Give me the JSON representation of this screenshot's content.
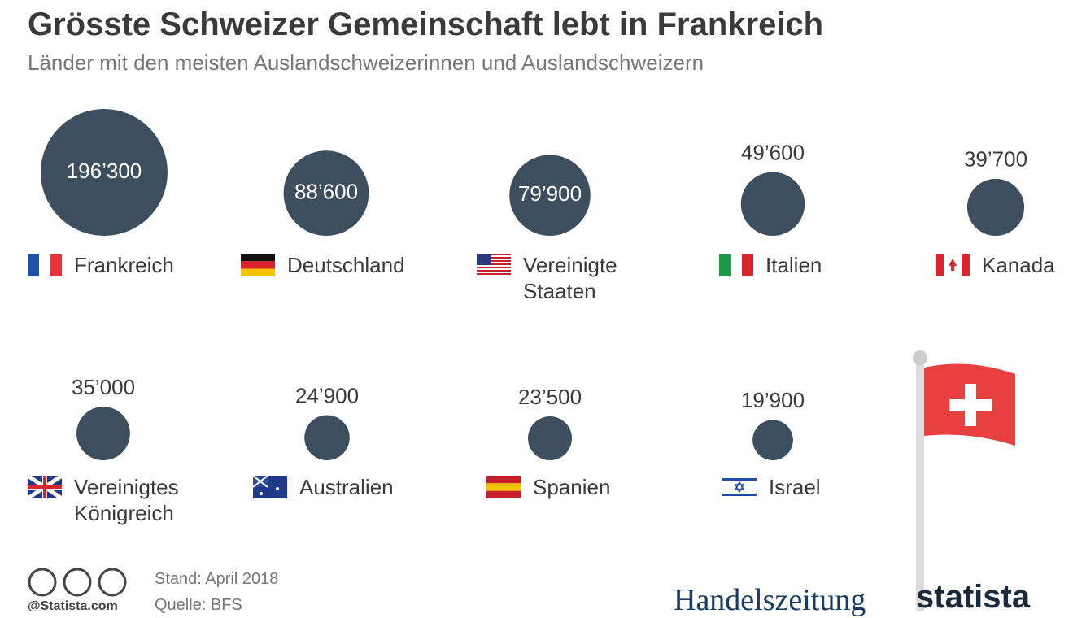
{
  "chart_data": {
    "type": "bubble",
    "title": "Grösste Schweizer Gemeinschaft lebt in Frankreich",
    "subtitle": "Länder mit den meisten Auslandschweizerinnen und Auslandschweizern",
    "categories": [
      "Frankreich",
      "Deutschland",
      "Vereinigte Staaten",
      "Italien",
      "Kanada",
      "Vereinigtes Königreich",
      "Australien",
      "Spanien",
      "Israel"
    ],
    "values": [
      196300,
      88600,
      79900,
      49600,
      39700,
      35000,
      24900,
      23500,
      19900
    ],
    "value_labels": [
      "196’300",
      "88’600",
      "79’900",
      "49’600",
      "39’700",
      "35’000",
      "24’900",
      "23’500",
      "19’900"
    ],
    "color": "#3d4f5f",
    "date_note": "Stand: April 2018",
    "source": "Quelle: BFS",
    "credit": "@Statista.com",
    "brands": [
      "Handelszeitung",
      "statista"
    ]
  }
}
